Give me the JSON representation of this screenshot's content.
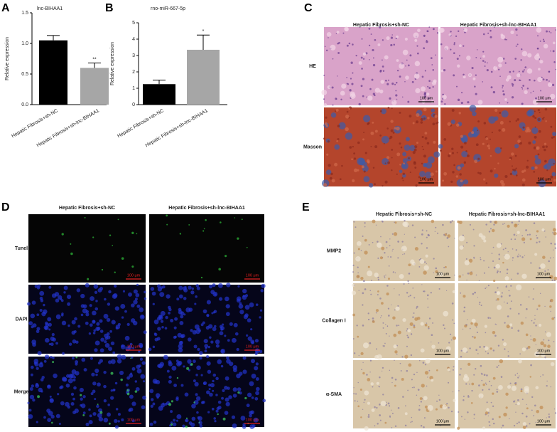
{
  "chart_data": [
    {
      "type": "bar",
      "panel": "A",
      "title": "lnc-BIHAA1",
      "ylabel": "Relative expression",
      "categories": [
        "Hepatic Fibrosis+sh-NC",
        "Hepatic Fibrosis+sh-lnc-BIHAA1"
      ],
      "values": [
        1.05,
        0.6
      ],
      "errors": [
        0.08,
        0.08
      ],
      "annotations": [
        null,
        "**"
      ],
      "colors": [
        "#000000",
        "#a6a6a6"
      ],
      "ylim": [
        0,
        1.5
      ],
      "yticks": [
        {
          "value": 0,
          "label": "0.0"
        },
        0.5,
        {
          "value": 1,
          "label": "1.0"
        },
        1.5
      ]
    },
    {
      "type": "bar",
      "panel": "B",
      "title": "rno-miR-667-5p",
      "ylabel": "Relative expression",
      "categories": [
        "Hepatic Fibrosis+sh-NC",
        "Hepatic Fibrosis+sh-lnc-BIHAA1"
      ],
      "values": [
        1.25,
        3.35
      ],
      "errors": [
        0.25,
        0.9
      ],
      "annotations": [
        null,
        "*"
      ],
      "colors": [
        "#000000",
        "#a6a6a6"
      ],
      "ylim": [
        0,
        5
      ],
      "yticks": [
        0,
        1,
        2,
        3,
        4,
        5
      ]
    }
  ],
  "panels": [
    {
      "label": "C",
      "columns": [
        "Hepatic Fibrosis+sh-NC",
        "Hepatic Fibrosis+sh-lnc-BIHAA1"
      ],
      "rows": [
        "HE",
        "Masson"
      ],
      "scale_bar": "100 μm"
    },
    {
      "label": "D",
      "columns": [
        "Hepatic Fibrosis+sh-NC",
        "Hepatic Fibrosis+sh-lnc-BIHAA1"
      ],
      "rows": [
        "Tunel",
        "DAPI",
        "Merge"
      ],
      "scale_bar": "100 μm"
    },
    {
      "label": "E",
      "columns": [
        "Hepatic Fibrosis+sh-NC",
        "Hepatic Fibrosis+sh-lnc-BIHAA1"
      ],
      "rows": [
        "MMP2",
        "Collagen I",
        "α-SMA"
      ],
      "scale_bar": "100 μm"
    }
  ]
}
